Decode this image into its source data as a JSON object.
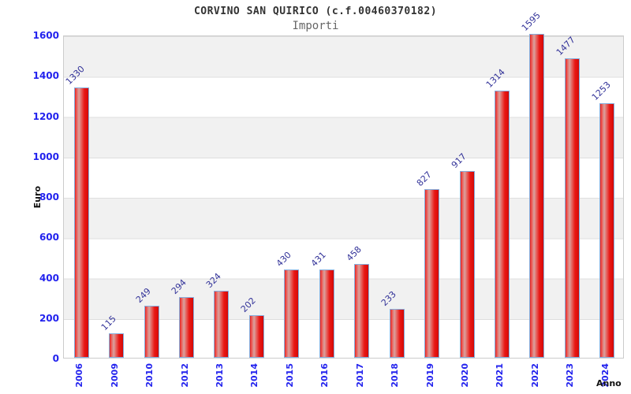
{
  "title": "CORVINO SAN QUIRICO (c.f.00460370182)",
  "subtitle": "Importi",
  "chart_data": {
    "type": "bar",
    "title": "CORVINO SAN QUIRICO (c.f.00460370182)",
    "subtitle": "Importi",
    "categories": [
      "2006",
      "2009",
      "2010",
      "2012",
      "2013",
      "2014",
      "2015",
      "2016",
      "2017",
      "2018",
      "2019",
      "2020",
      "2021",
      "2022",
      "2023",
      "2024"
    ],
    "values": [
      1330,
      115,
      249,
      294,
      324,
      202,
      430,
      431,
      458,
      233,
      827,
      917,
      1314,
      1595,
      1477,
      1253
    ],
    "xlabel": "Anno",
    "ylabel": "Euro",
    "ylim": [
      0,
      1600
    ],
    "ytick_step": 200,
    "yticks": [
      0,
      200,
      400,
      600,
      800,
      1000,
      1200,
      1400,
      1600
    ],
    "grid": "alternating-horizontal-bands",
    "legend_position": "none",
    "bar_labels_rotation_deg": -45,
    "x_labels_rotation_deg": -90
  },
  "colors": {
    "bar_fill_main": "#e81010",
    "bar_fill_highlight": "#d9a29e",
    "bar_border": "#85aede",
    "axis_tick_label": "#2222ee",
    "bar_value_label": "#333399",
    "band_gray": "#f1f1f1",
    "band_white": "#ffffff",
    "plot_border": "#cccccc",
    "title_color": "#333333",
    "subtitle_color": "#666666",
    "axis_title_color": "#111111"
  }
}
